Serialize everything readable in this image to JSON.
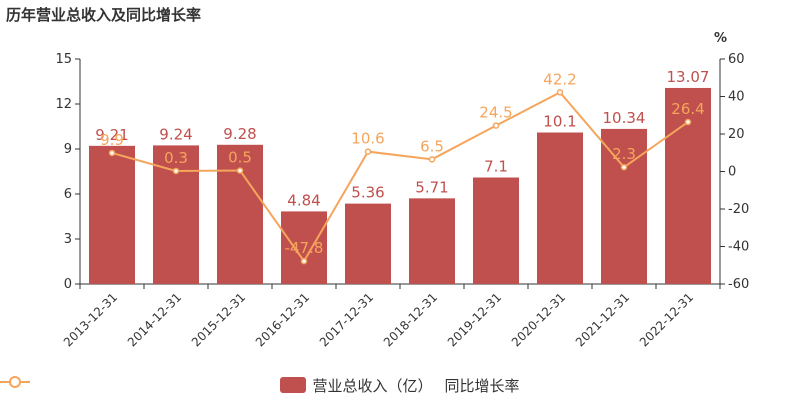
{
  "title": "历年营业总收入及同比增长率",
  "colors": {
    "bar": "#c0504d",
    "line": "#f5a55c",
    "axis": "#333333",
    "grid": "#e0e0e0",
    "bar_label": "#c0504d",
    "line_label": "#f5a55c"
  },
  "legend": {
    "bar_label": "营业总收入（亿）",
    "line_label": "同比增长率"
  },
  "chart_data": {
    "type": "bar",
    "title": "历年营业总收入及同比增长率",
    "categories": [
      "2013-12-31",
      "2014-12-31",
      "2015-12-31",
      "2016-12-31",
      "2017-12-31",
      "2018-12-31",
      "2019-12-31",
      "2020-12-31",
      "2021-12-31",
      "2022-12-31"
    ],
    "series": [
      {
        "name": "营业总收入（亿）",
        "type": "bar",
        "axis": "left",
        "values": [
          9.21,
          9.24,
          9.28,
          4.84,
          5.36,
          5.71,
          7.1,
          10.1,
          10.34,
          13.07
        ],
        "labels": [
          "9.21",
          "9.24",
          "9.28",
          "4.84",
          "5.36",
          "5.71",
          "7.1",
          "10.1",
          "10.34",
          "13.07"
        ]
      },
      {
        "name": "同比增长率",
        "type": "line",
        "axis": "right",
        "values": [
          9.9,
          0.3,
          0.5,
          -47.8,
          10.6,
          6.5,
          24.5,
          42.2,
          2.3,
          26.4
        ],
        "labels": [
          "9.9",
          "0.3",
          "0.5",
          "-47.8",
          "10.6",
          "6.5",
          "24.5",
          "42.2",
          "2.3",
          "26.4"
        ]
      }
    ],
    "y_left": {
      "min": 0,
      "max": 15,
      "ticks": [
        "0",
        "3",
        "6",
        "9",
        "12",
        "15"
      ]
    },
    "y_right": {
      "min": -60,
      "max": 60,
      "unit": "%",
      "ticks": [
        "-60",
        "-40",
        "-20",
        "0",
        "20",
        "40",
        "60"
      ]
    },
    "grid": false,
    "legend_position": "bottom-center"
  }
}
